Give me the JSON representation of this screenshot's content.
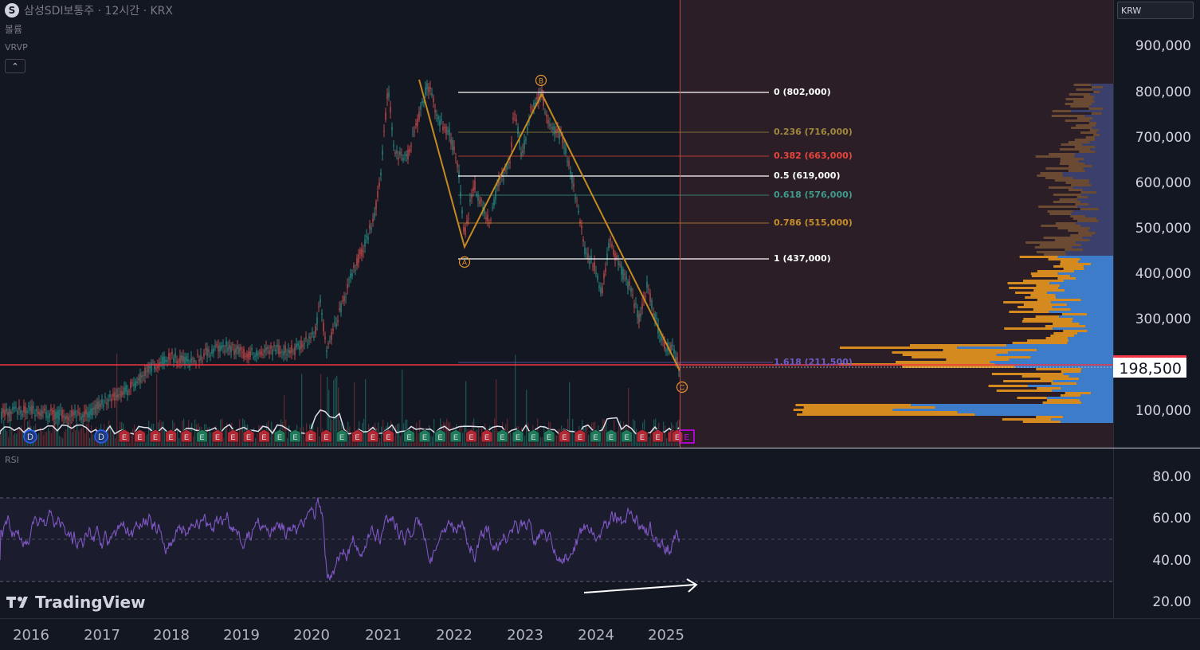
{
  "header": {
    "symbol_logo": "S",
    "title": "삼성SDI보통주 · 12시간 · KRX"
  },
  "indicators": {
    "volume_label": "볼륨",
    "vrvp_label": "VRVP",
    "collapse_icon": "chevron-up-icon",
    "collapse_glyph": "⌃"
  },
  "price_axis": {
    "currency": "KRW",
    "ticks": [
      "900,000",
      "800,000",
      "700,000",
      "600,000",
      "500,000",
      "400,000",
      "300,000",
      "100,000"
    ],
    "current_price": "198,500"
  },
  "fib_levels": [
    {
      "label": "0 (802,000)",
      "color": "#ffffff"
    },
    {
      "label": "0.236 (716,000)",
      "color": "#a1883c"
    },
    {
      "label": "0.382 (663,000)",
      "color": "#e8453c"
    },
    {
      "label": "0.5 (619,000)",
      "color": "#ffffff"
    },
    {
      "label": "0.618 (576,000)",
      "color": "#3f9b8a"
    },
    {
      "label": "0.786 (515,000)",
      "color": "#c58e2b"
    },
    {
      "label": "1 (437,000)",
      "color": "#ffffff"
    },
    {
      "label": "1.618 (211,500)",
      "color": "#6c5ec7"
    }
  ],
  "wave_labels": [
    "A",
    "B",
    "C"
  ],
  "event_markers": [
    "D",
    "D",
    "E"
  ],
  "rsi": {
    "label": "RSI",
    "ticks": [
      "80.00",
      "60.00",
      "40.00",
      "20.00"
    ]
  },
  "time_axis": {
    "years": [
      "2016",
      "2017",
      "2018",
      "2019",
      "2020",
      "2021",
      "2022",
      "2023",
      "2024",
      "2025"
    ]
  },
  "branding": {
    "name": "TradingView"
  },
  "colors": {
    "background": "#131722",
    "future_zone": "#2b1e27",
    "price_line": "#f23645",
    "rsi_line": "#7e57c2",
    "volume_profile_up": "#d48a1f",
    "volume_profile_down": "#3d7cc9",
    "wave_line": "#c58a22"
  }
}
